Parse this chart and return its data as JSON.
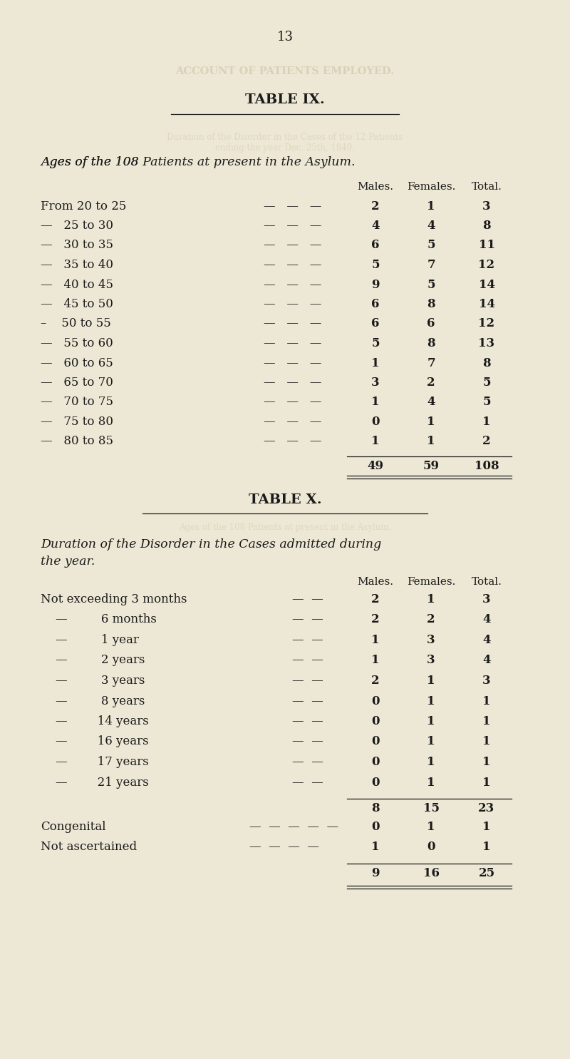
{
  "bg_color": "#ede8d5",
  "page_number": "13",
  "ghost_color": "#c8bfa0",
  "table9": {
    "title": "TABLE IX.",
    "subtitle": "Ages of the 108 Patients at present in the Asylum.",
    "col_headers": [
      "Males.",
      "Females.",
      "Total."
    ],
    "rows": [
      {
        "label_left": "From 20 to 25",
        "dashes": "—   —   —",
        "males": "2",
        "females": "1",
        "total": "3"
      },
      {
        "label_left": "—   25 to 30",
        "dashes": "—   —   —",
        "males": "4",
        "females": "4",
        "total": "8"
      },
      {
        "label_left": "—   30 to 35",
        "dashes": "—   —   —",
        "males": "6",
        "females": "5",
        "total": "11"
      },
      {
        "label_left": "—   35 to 40",
        "dashes": "—   —   —",
        "males": "5",
        "females": "7",
        "total": "12"
      },
      {
        "label_left": "—   40 to 45",
        "dashes": "—   —   —",
        "males": "9",
        "females": "5",
        "total": "14"
      },
      {
        "label_left": "—   45 to 50",
        "dashes": "—   —   —",
        "males": "6",
        "females": "8",
        "total": "14"
      },
      {
        "label_left": "–    50 to 55",
        "dashes": "—   —   —",
        "males": "6",
        "females": "6",
        "total": "12"
      },
      {
        "label_left": "—   55 to 60",
        "dashes": "—   —   —",
        "males": "5",
        "females": "8",
        "total": "13"
      },
      {
        "label_left": "—   60 to 65",
        "dashes": "—   —   —",
        "males": "1",
        "females": "7",
        "total": "8"
      },
      {
        "label_left": "—   65 to 70",
        "dashes": "—   —   —",
        "males": "3",
        "females": "2",
        "total": "5"
      },
      {
        "label_left": "—   70 to 75",
        "dashes": "—   —   —",
        "males": "1",
        "females": "4",
        "total": "5"
      },
      {
        "label_left": "—   75 to 80",
        "dashes": "—   —   —",
        "males": "0",
        "females": "1",
        "total": "1"
      },
      {
        "label_left": "—   80 to 85",
        "dashes": "—   —   —",
        "males": "1",
        "females": "1",
        "total": "2"
      }
    ],
    "total_row": {
      "males": "49",
      "females": "59",
      "total": "108"
    }
  },
  "table10": {
    "title": "TABLE X.",
    "subtitle_line1": "Duration of the Disorder in the Cases admitted during",
    "subtitle_line2": "the year.",
    "col_headers": [
      "Males.",
      "Females.",
      "Total."
    ],
    "rows": [
      {
        "label_left": "Not exceeding 3 months",
        "dashes": "—  —",
        "males": "2",
        "females": "1",
        "total": "3"
      },
      {
        "label_left": "    —         6 months",
        "dashes": "—  —",
        "males": "2",
        "females": "2",
        "total": "4"
      },
      {
        "label_left": "    —         1 year",
        "dashes": "—  —",
        "males": "1",
        "females": "3",
        "total": "4"
      },
      {
        "label_left": "    —         2 years",
        "dashes": "—  —",
        "males": "1",
        "females": "3",
        "total": "4"
      },
      {
        "label_left": "    —         3 years",
        "dashes": "—  —",
        "males": "2",
        "females": "1",
        "total": "3"
      },
      {
        "label_left": "    —         8 years",
        "dashes": "—  —",
        "males": "0",
        "females": "1",
        "total": "1"
      },
      {
        "label_left": "    —        14 years",
        "dashes": "—  —",
        "males": "0",
        "females": "1",
        "total": "1"
      },
      {
        "label_left": "    —        16 years",
        "dashes": "—  —",
        "males": "0",
        "females": "1",
        "total": "1"
      },
      {
        "label_left": "    —        17 years",
        "dashes": "—  —",
        "males": "0",
        "females": "1",
        "total": "1"
      },
      {
        "label_left": "    —        21 years",
        "dashes": "—  —",
        "males": "0",
        "females": "1",
        "total": "1"
      }
    ],
    "subtotal_row": {
      "males": "8",
      "females": "15",
      "total": "23"
    },
    "extra_rows": [
      {
        "label_left": "Congenital",
        "dashes": "—  —  —  —  —",
        "males": "0",
        "females": "1",
        "total": "1"
      },
      {
        "label_left": "Not ascertained",
        "dashes": "—  —  —  —",
        "males": "1",
        "females": "0",
        "total": "1"
      }
    ],
    "total_row": {
      "males": "9",
      "females": "16",
      "total": "25"
    }
  }
}
